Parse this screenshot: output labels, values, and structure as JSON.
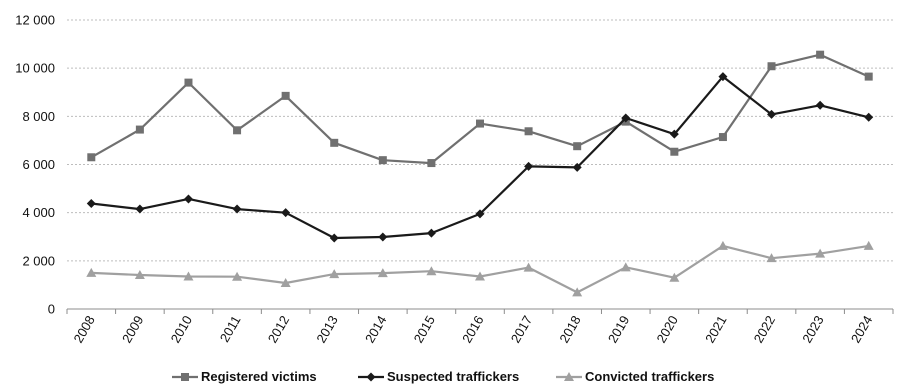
{
  "chart_data": {
    "type": "line",
    "title": "",
    "xlabel": "",
    "ylabel": "",
    "x": [
      "2008",
      "2009",
      "2010",
      "2011",
      "2012",
      "2013",
      "2014",
      "2015",
      "2016",
      "2017",
      "2018",
      "2019",
      "2020",
      "2021",
      "2022",
      "2023",
      "2024"
    ],
    "ylim": [
      0,
      12000
    ],
    "yticks": [
      0,
      2000,
      4000,
      6000,
      8000,
      10000,
      12000
    ],
    "ytick_labels": [
      "0",
      "2 000",
      "4 000",
      "6 000",
      "8 000",
      "10 000",
      "12 000"
    ],
    "grid": "horizontal-dotted",
    "legend_position": "bottom",
    "series": [
      {
        "name": "Registered victims",
        "marker": "square",
        "color": "#707070",
        "values": [
          6300,
          7450,
          9400,
          7420,
          8850,
          6900,
          6180,
          6060,
          7700,
          7380,
          6760,
          7780,
          6530,
          7140,
          10080,
          10560,
          9650
        ]
      },
      {
        "name": "Suspected traffickers",
        "marker": "diamond",
        "color": "#1a1a1a",
        "values": [
          4380,
          4150,
          4570,
          4150,
          4000,
          2950,
          2990,
          3150,
          3950,
          5920,
          5880,
          7930,
          7260,
          9650,
          8080,
          8460,
          7960
        ]
      },
      {
        "name": "Convicted traffickers",
        "marker": "triangle",
        "color": "#a0a0a0",
        "values": [
          1500,
          1410,
          1350,
          1340,
          1080,
          1450,
          1490,
          1570,
          1350,
          1720,
          690,
          1730,
          1300,
          2620,
          2110,
          2300,
          2620
        ]
      }
    ]
  }
}
